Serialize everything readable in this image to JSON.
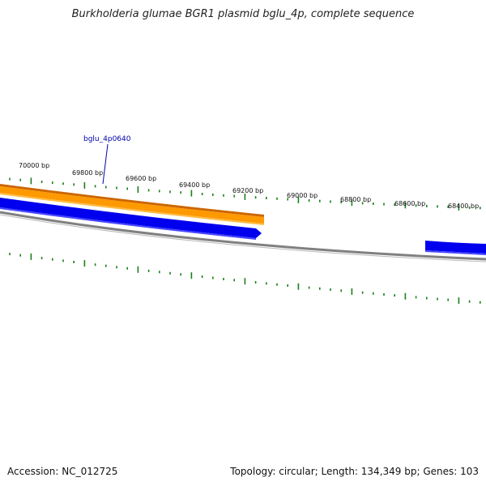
{
  "title": "Burkholderia glumae BGR1 plasmid bglu_4p, complete sequence",
  "footer": {
    "accession": "Accession: NC_012725",
    "summary": "Topology: circular; Length: 134,349 bp; Genes: 103"
  },
  "colors": {
    "orange_feature": "#ff9900",
    "orange_edge": "#cc6600",
    "blue_feature": "#0000ee",
    "backbone": "#808080",
    "ticks": "#1a7f1a"
  },
  "chart_data": {
    "type": "plasmid_map",
    "tick_labels": [
      "70000 bp",
      "69800 bp",
      "69600 bp",
      "69400 bp",
      "69200 bp",
      "69000 bp",
      "68800 bp",
      "68600 bp",
      "68400 bp"
    ],
    "gene_label": "bglu_4p0640",
    "features": [
      {
        "name": "bglu_4p0640",
        "strand": "forward",
        "color": "orange"
      },
      {
        "name": "",
        "strand": "reverse",
        "color": "blue"
      },
      {
        "name": "",
        "strand": "reverse",
        "color": "blue"
      }
    ]
  }
}
